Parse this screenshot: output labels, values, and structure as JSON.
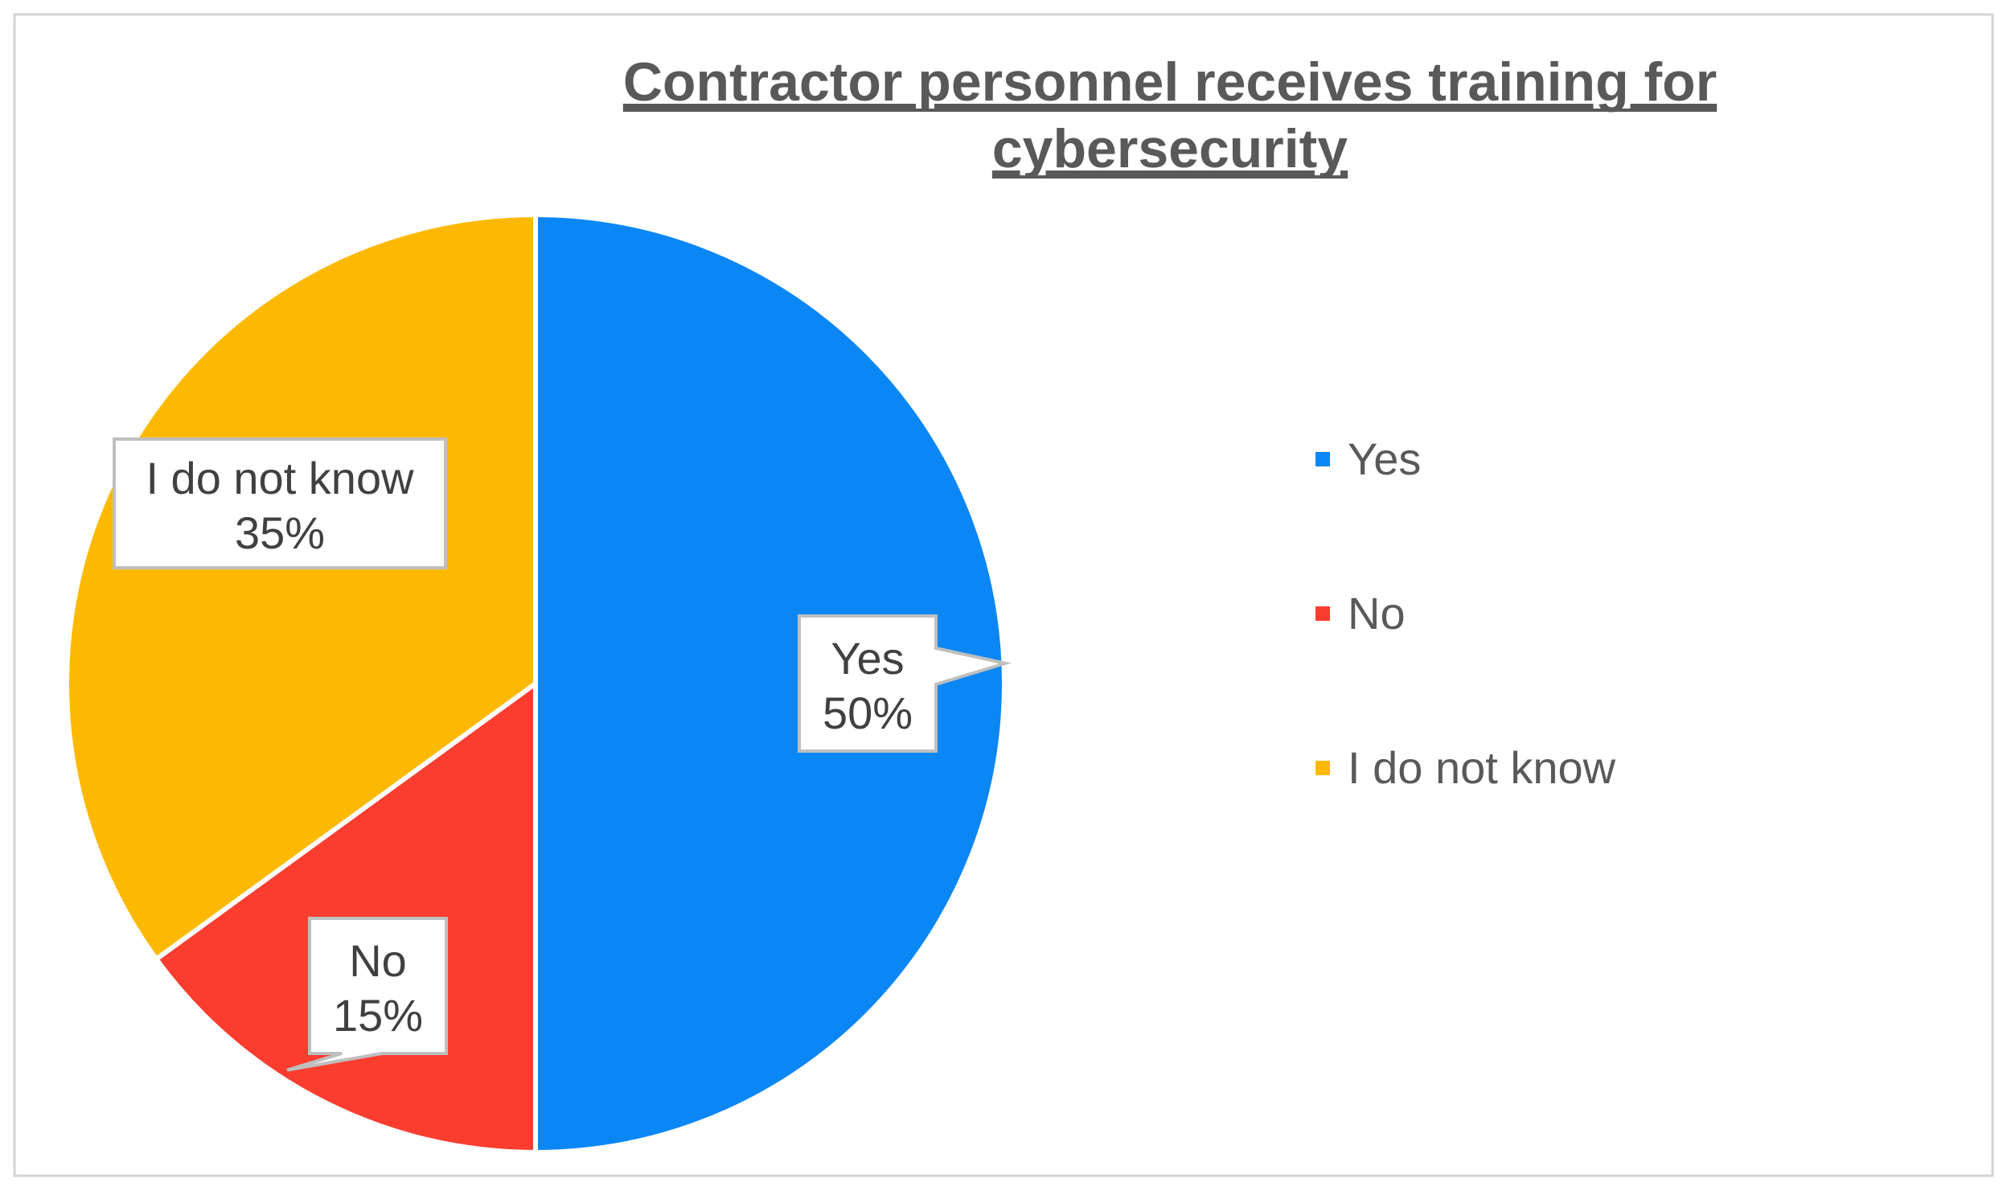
{
  "chart_data": {
    "type": "pie",
    "title": "Contractor personnel receives training for cybersecurity",
    "categories": [
      "Yes",
      "No",
      "I do not know"
    ],
    "values": [
      50,
      15,
      35
    ],
    "value_suffix": "%",
    "colors": [
      "#0a87f5",
      "#fb3d2f",
      "#fdb900"
    ],
    "legend": "right",
    "data_labels": true
  }
}
